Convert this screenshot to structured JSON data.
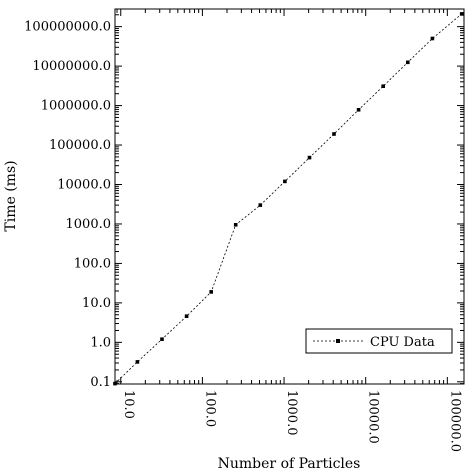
{
  "chart_data": {
    "type": "line",
    "title": "",
    "xlabel": "Number of Particles",
    "ylabel": "Time (ms)",
    "xscale": "log",
    "yscale": "log",
    "xlim": [
      8.5,
      160000
    ],
    "ylim": [
      0.088,
      280000000
    ],
    "grid": false,
    "legend_position": "bottom-right",
    "x_tick_labels": [
      "10.0",
      "100.0",
      "1000.0",
      "10000.0",
      "100000.0"
    ],
    "x_tick_values": [
      10,
      100,
      1000,
      10000,
      100000
    ],
    "y_tick_labels": [
      "0.1",
      "1.0",
      "10.0",
      "100.0",
      "1000.0",
      "10000.0",
      "100000.0",
      "1000000.0",
      "10000000.0",
      "100000000.0"
    ],
    "y_tick_values": [
      0.1,
      1,
      10,
      100,
      1000,
      10000,
      100000,
      1000000,
      10000000,
      100000000
    ],
    "series": [
      {
        "name": "CPU Data",
        "color": "#000000",
        "line_style": "dashed",
        "marker": "square",
        "x": [
          8.5,
          16,
          32,
          64,
          128,
          256,
          512,
          1024,
          2048,
          4096,
          8192,
          16384,
          32768,
          65536,
          150000
        ],
        "y": [
          0.09,
          0.32,
          1.2,
          4.6,
          19,
          950,
          3000,
          12000,
          48000,
          190000,
          780000,
          3100000,
          12500000,
          50000000,
          210000000
        ]
      }
    ]
  }
}
